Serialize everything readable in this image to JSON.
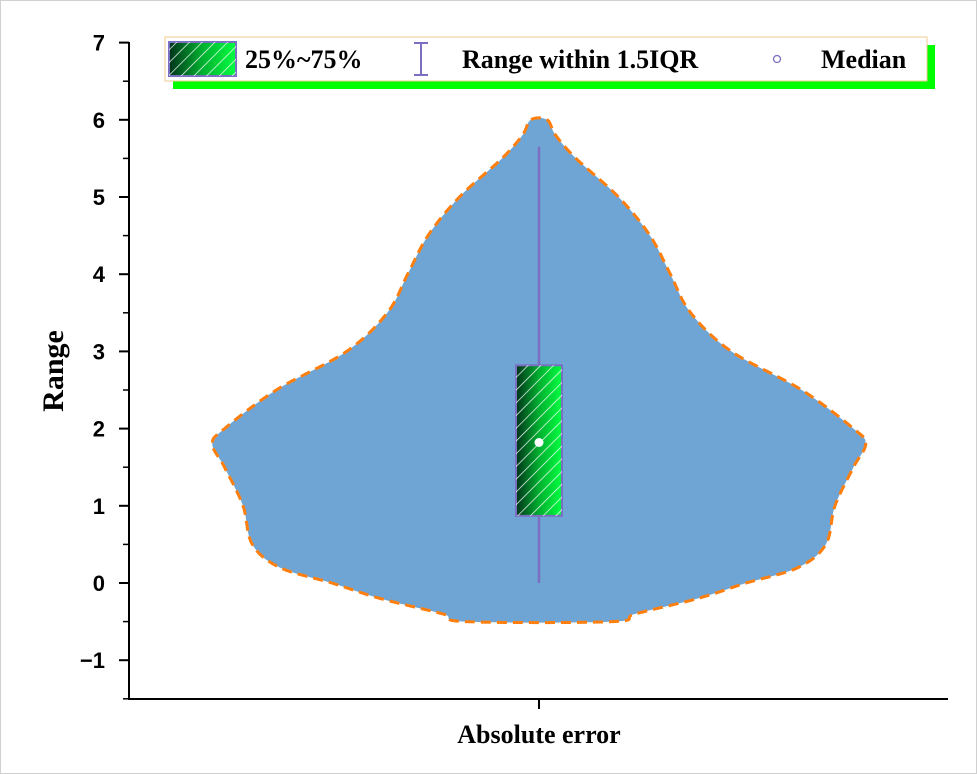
{
  "chart_data": {
    "type": "violin",
    "title": "",
    "xlabel": "",
    "ylabel": "Range",
    "ylim": [
      -1.5,
      7
    ],
    "yticks": [
      -1,
      0,
      1,
      2,
      3,
      4,
      5,
      6,
      7
    ],
    "ytick_labels": [
      "−1",
      "0",
      "1",
      "2",
      "3",
      "4",
      "5",
      "6",
      "7"
    ],
    "categories": [
      "Absolute error"
    ],
    "series": [
      {
        "category": "Absolute error",
        "q1": 0.87,
        "q3": 2.82,
        "median": 1.82,
        "whisker_low": 0.0,
        "whisker_high": 5.65,
        "density_max_y": 6.0,
        "density_min_y": -0.5,
        "density_profile": [
          [
            6.0,
            0.022
          ],
          [
            5.8,
            0.045
          ],
          [
            5.5,
            0.1
          ],
          [
            5.0,
            0.215
          ],
          [
            4.5,
            0.3
          ],
          [
            4.0,
            0.355
          ],
          [
            3.5,
            0.41
          ],
          [
            3.0,
            0.52
          ],
          [
            2.5,
            0.71
          ],
          [
            2.0,
            0.85
          ],
          [
            1.8,
            0.883
          ],
          [
            1.5,
            0.85
          ],
          [
            1.0,
            0.8
          ],
          [
            0.5,
            0.775
          ],
          [
            0.2,
            0.7
          ],
          [
            0.0,
            0.56
          ],
          [
            -0.2,
            0.43
          ],
          [
            -0.4,
            0.26
          ],
          [
            -0.5,
            0.2
          ]
        ]
      }
    ],
    "violin_fill": "#6fa5d4",
    "violin_outline": "#ff7f0e",
    "box_fill": "#00e040",
    "whisker_color": "#7a6fc0",
    "legend_placement": "top-center",
    "legend": {
      "box_label": "25%~75%",
      "range_label": "Range within 1.5IQR",
      "median_label": "Median",
      "shadow_color": "#00ff00",
      "border_color": "#f0c890"
    }
  }
}
